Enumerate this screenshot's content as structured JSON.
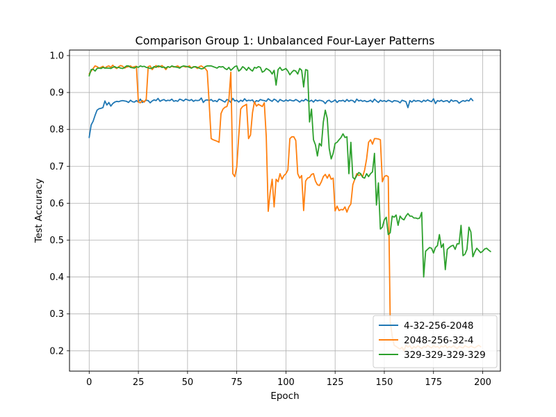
{
  "chart_data": {
    "type": "line",
    "title": "Comparison Group 1: Unbalanced Four-Layer Patterns",
    "xlabel": "Epoch",
    "ylabel": "Test Accuracy",
    "xlim": [
      -10,
      209
    ],
    "ylim": [
      0.145,
      1.015
    ],
    "xticks": [
      0,
      25,
      50,
      75,
      100,
      125,
      150,
      175,
      200
    ],
    "yticks": [
      0.2,
      0.3,
      0.4,
      0.5,
      0.6,
      0.7,
      0.8,
      0.9,
      1.0
    ],
    "grid": true,
    "legend_position": "lower-right",
    "series": [
      {
        "name": "4-32-256-2048",
        "color": "#1f77b4",
        "values": [
          0.778,
          0.812,
          0.822,
          0.838,
          0.852,
          0.856,
          0.857,
          0.859,
          0.877,
          0.866,
          0.873,
          0.863,
          0.87,
          0.874,
          0.876,
          0.875,
          0.877,
          0.878,
          0.877,
          0.876,
          0.873,
          0.879,
          0.875,
          0.874,
          0.878,
          0.874,
          0.882,
          0.873,
          0.876,
          0.879,
          0.878,
          0.872,
          0.877,
          0.88,
          0.878,
          0.884,
          0.876,
          0.879,
          0.881,
          0.877,
          0.879,
          0.878,
          0.882,
          0.876,
          0.878,
          0.876,
          0.882,
          0.88,
          0.877,
          0.882,
          0.88,
          0.878,
          0.881,
          0.876,
          0.879,
          0.878,
          0.879,
          0.885,
          0.873,
          0.879,
          0.88,
          0.878,
          0.881,
          0.876,
          0.878,
          0.875,
          0.882,
          0.88,
          0.877,
          0.874,
          0.881,
          0.879,
          0.873,
          0.884,
          0.877,
          0.879,
          0.874,
          0.879,
          0.876,
          0.883,
          0.877,
          0.879,
          0.878,
          0.88,
          0.872,
          0.878,
          0.876,
          0.881,
          0.879,
          0.878,
          0.876,
          0.883,
          0.879,
          0.876,
          0.882,
          0.879,
          0.874,
          0.881,
          0.878,
          0.876,
          0.88,
          0.877,
          0.88,
          0.878,
          0.877,
          0.881,
          0.878,
          0.874,
          0.879,
          0.877,
          0.882,
          0.878,
          0.876,
          0.879,
          0.874,
          0.88,
          0.877,
          0.879,
          0.878,
          0.876,
          0.87,
          0.877,
          0.879,
          0.874,
          0.876,
          0.88,
          0.873,
          0.878,
          0.877,
          0.879,
          0.875,
          0.881,
          0.876,
          0.879,
          0.878,
          0.873,
          0.882,
          0.877,
          0.879,
          0.876,
          0.878,
          0.875,
          0.876,
          0.879,
          0.874,
          0.882,
          0.877,
          0.873,
          0.879,
          0.876,
          0.878,
          0.875,
          0.879,
          0.877,
          0.874,
          0.878,
          0.877,
          0.876,
          0.872,
          0.879,
          0.877,
          0.875,
          0.859,
          0.878,
          0.874,
          0.879,
          0.876,
          0.878,
          0.877,
          0.874,
          0.879,
          0.876,
          0.88,
          0.877,
          0.875,
          0.883,
          0.87,
          0.878,
          0.876,
          0.879,
          0.875,
          0.877,
          0.878,
          0.873,
          0.88,
          0.876,
          0.878,
          0.877,
          0.871,
          0.875,
          0.878,
          0.876,
          0.879,
          0.877,
          0.884,
          0.878
        ]
      },
      {
        "name": "2048-256-32-4",
        "color": "#ff7f0e",
        "values": [
          0.95,
          0.958,
          0.965,
          0.972,
          0.97,
          0.966,
          0.968,
          0.971,
          0.966,
          0.97,
          0.972,
          0.968,
          0.974,
          0.968,
          0.965,
          0.97,
          0.973,
          0.971,
          0.966,
          0.969,
          0.97,
          0.972,
          0.968,
          0.97,
          0.971,
          0.874,
          0.872,
          0.878,
          0.874,
          0.882,
          0.97,
          0.972,
          0.962,
          0.968,
          0.973,
          0.969,
          0.97,
          0.973,
          0.968,
          0.962,
          0.97,
          0.968,
          0.971,
          0.969,
          0.97,
          0.972,
          0.968,
          0.97,
          0.971,
          0.969,
          0.97,
          0.972,
          0.966,
          0.97,
          0.969,
          0.965,
          0.97,
          0.972,
          0.968,
          0.965,
          0.958,
          0.87,
          0.775,
          0.772,
          0.77,
          0.768,
          0.765,
          0.843,
          0.855,
          0.86,
          0.862,
          0.88,
          0.955,
          0.68,
          0.672,
          0.698,
          0.78,
          0.855,
          0.862,
          0.865,
          0.868,
          0.775,
          0.785,
          0.845,
          0.875,
          0.863,
          0.868,
          0.865,
          0.862,
          0.872,
          0.78,
          0.578,
          0.63,
          0.665,
          0.59,
          0.665,
          0.658,
          0.68,
          0.665,
          0.675,
          0.68,
          0.69,
          0.775,
          0.78,
          0.78,
          0.77,
          0.68,
          0.668,
          0.675,
          0.58,
          0.66,
          0.668,
          0.67,
          0.678,
          0.68,
          0.66,
          0.65,
          0.648,
          0.658,
          0.672,
          0.678,
          0.668,
          0.678,
          0.665,
          0.668,
          0.579,
          0.592,
          0.58,
          0.583,
          0.582,
          0.59,
          0.576,
          0.59,
          0.598,
          0.65,
          0.665,
          0.68,
          0.675,
          0.678,
          0.672,
          0.69,
          0.72,
          0.765,
          0.772,
          0.76,
          0.775,
          0.775,
          0.774,
          0.772,
          0.658,
          0.672,
          0.675,
          0.672,
          0.28,
          0.24,
          0.215,
          0.212,
          0.208,
          0.205,
          0.21,
          0.2,
          0.215,
          0.21,
          0.214,
          0.205,
          0.212,
          0.208,
          0.214,
          0.21,
          0.206,
          0.212,
          0.209,
          0.215,
          0.211,
          0.208,
          0.214,
          0.21,
          0.212,
          0.207,
          0.213,
          0.21,
          0.215,
          0.208,
          0.212,
          0.209,
          0.214,
          0.21,
          0.206,
          0.212,
          0.21,
          0.208,
          0.214,
          0.211,
          0.209,
          0.213,
          0.21,
          0.208,
          0.212,
          0.215,
          0.211
        ]
      },
      {
        "name": "329-329-329-329",
        "color": "#2ca02c",
        "values": [
          0.945,
          0.962,
          0.963,
          0.958,
          0.965,
          0.966,
          0.965,
          0.968,
          0.966,
          0.966,
          0.966,
          0.965,
          0.968,
          0.97,
          0.967,
          0.968,
          0.966,
          0.965,
          0.968,
          0.972,
          0.972,
          0.968,
          0.967,
          0.966,
          0.97,
          0.968,
          0.972,
          0.97,
          0.971,
          0.968,
          0.967,
          0.965,
          0.966,
          0.97,
          0.968,
          0.972,
          0.971,
          0.968,
          0.969,
          0.966,
          0.97,
          0.968,
          0.972,
          0.97,
          0.969,
          0.968,
          0.966,
          0.97,
          0.972,
          0.971,
          0.97,
          0.968,
          0.966,
          0.969,
          0.97,
          0.968,
          0.966,
          0.964,
          0.965,
          0.97,
          0.972,
          0.972,
          0.972,
          0.97,
          0.968,
          0.966,
          0.97,
          0.969,
          0.97,
          0.965,
          0.962,
          0.968,
          0.96,
          0.965,
          0.97,
          0.972,
          0.958,
          0.962,
          0.97,
          0.966,
          0.96,
          0.968,
          0.962,
          0.958,
          0.968,
          0.966,
          0.97,
          0.968,
          0.955,
          0.958,
          0.965,
          0.962,
          0.958,
          0.95,
          0.96,
          0.92,
          0.962,
          0.968,
          0.96,
          0.962,
          0.965,
          0.958,
          0.948,
          0.955,
          0.96,
          0.958,
          0.95,
          0.965,
          0.96,
          0.915,
          0.962,
          0.96,
          0.82,
          0.855,
          0.772,
          0.758,
          0.728,
          0.762,
          0.755,
          0.82,
          0.852,
          0.83,
          0.748,
          0.72,
          0.735,
          0.762,
          0.765,
          0.772,
          0.778,
          0.788,
          0.778,
          0.78,
          0.68,
          0.765,
          0.67,
          0.665,
          0.675,
          0.683,
          0.68,
          0.67,
          0.668,
          0.68,
          0.672,
          0.68,
          0.685,
          0.735,
          0.595,
          0.655,
          0.53,
          0.535,
          0.555,
          0.562,
          0.515,
          0.52,
          0.565,
          0.562,
          0.568,
          0.54,
          0.565,
          0.558,
          0.555,
          0.565,
          0.572,
          0.565,
          0.565,
          0.56,
          0.56,
          0.558,
          0.56,
          0.575,
          0.4,
          0.47,
          0.475,
          0.48,
          0.478,
          0.465,
          0.48,
          0.485,
          0.515,
          0.48,
          0.49,
          0.42,
          0.475,
          0.48,
          0.484,
          0.486,
          0.475,
          0.49,
          0.49,
          0.54,
          0.458,
          0.462,
          0.475,
          0.535,
          0.522,
          0.455,
          0.468,
          0.478,
          0.472,
          0.466,
          0.47,
          0.476,
          0.478,
          0.473,
          0.469
        ]
      }
    ]
  }
}
